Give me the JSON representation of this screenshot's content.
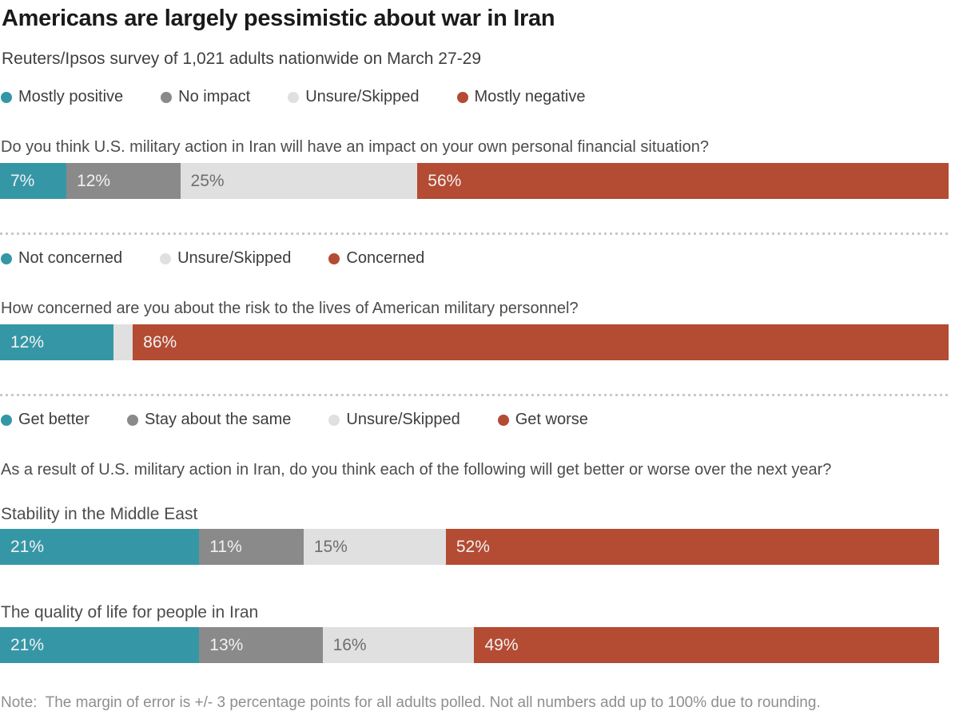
{
  "chart_data": {
    "type": "bar",
    "orientation": "horizontal-stacked",
    "title": "Americans are largely pessimistic about war in Iran",
    "subtitle": "Reuters/Ipsos survey of 1,021 adults nationwide on March 27-29",
    "note": "Note:  The margin of error is +/- 3 percentage points for all adults polled. Not all numbers add up to 100% due to rounding.",
    "colors": {
      "positive": "#3597a6",
      "neutral": "#8a8a8a",
      "unsure": "#e0e0e0",
      "negative": "#b44b33"
    },
    "xlim": [
      0,
      100
    ],
    "grid": false,
    "legend_position": "above-each-section",
    "sections": [
      {
        "legend": [
          {
            "label": "Mostly positive",
            "color": "#3597a6"
          },
          {
            "label": "No impact",
            "color": "#8a8a8a"
          },
          {
            "label": "Unsure/Skipped",
            "color": "#e0e0e0"
          },
          {
            "label": "Mostly negative",
            "color": "#b44b33"
          }
        ],
        "question": "Do you think U.S. military action in Iran will have an impact on your own personal financial situation?",
        "bars": [
          {
            "label": "",
            "segments": [
              {
                "name": "Mostly positive",
                "value": 7,
                "text": "7%",
                "color": "#3597a6",
                "text_color": "#f2f2f2"
              },
              {
                "name": "No impact",
                "value": 12,
                "text": "12%",
                "color": "#8a8a8a",
                "text_color": "#f2f2f2"
              },
              {
                "name": "Unsure/Skipped",
                "value": 25,
                "text": "25%",
                "color": "#e0e0e0",
                "text_color": "#6e6e6e"
              },
              {
                "name": "Mostly negative",
                "value": 56,
                "text": "56%",
                "color": "#b44b33",
                "text_color": "#f2f2f2"
              }
            ]
          }
        ]
      },
      {
        "legend": [
          {
            "label": "Not concerned",
            "color": "#3597a6"
          },
          {
            "label": "Unsure/Skipped",
            "color": "#e0e0e0"
          },
          {
            "label": "Concerned",
            "color": "#b44b33"
          }
        ],
        "question": "How concerned are you about the risk to the lives of American military personnel?",
        "bars": [
          {
            "label": "",
            "segments": [
              {
                "name": "Not concerned",
                "value": 12,
                "text": "12%",
                "color": "#3597a6",
                "text_color": "#f2f2f2"
              },
              {
                "name": "Unsure/Skipped",
                "value": 2,
                "text": "",
                "color": "#e0e0e0",
                "text_color": "#6e6e6e"
              },
              {
                "name": "Concerned",
                "value": 86,
                "text": "86%",
                "color": "#b44b33",
                "text_color": "#f2f2f2"
              }
            ]
          }
        ]
      },
      {
        "legend": [
          {
            "label": "Get better",
            "color": "#3597a6"
          },
          {
            "label": "Stay about the same",
            "color": "#8a8a8a"
          },
          {
            "label": "Unsure/Skipped",
            "color": "#e0e0e0"
          },
          {
            "label": "Get worse",
            "color": "#b44b33"
          }
        ],
        "question": "As a result of U.S. military action in Iran, do you think each of the following will get better or worse over the next year?",
        "bars": [
          {
            "label": "Stability in the Middle East",
            "segments": [
              {
                "name": "Get better",
                "value": 21,
                "text": "21%",
                "color": "#3597a6",
                "text_color": "#f2f2f2"
              },
              {
                "name": "Stay about the same",
                "value": 11,
                "text": "11%",
                "color": "#8a8a8a",
                "text_color": "#f2f2f2"
              },
              {
                "name": "Unsure/Skipped",
                "value": 15,
                "text": "15%",
                "color": "#e0e0e0",
                "text_color": "#6e6e6e"
              },
              {
                "name": "Get worse",
                "value": 52,
                "text": "52%",
                "color": "#b44b33",
                "text_color": "#f2f2f2"
              }
            ]
          },
          {
            "label": "The quality of life for people in Iran",
            "segments": [
              {
                "name": "Get better",
                "value": 21,
                "text": "21%",
                "color": "#3597a6",
                "text_color": "#f2f2f2"
              },
              {
                "name": "Stay about the same",
                "value": 13,
                "text": "13%",
                "color": "#8a8a8a",
                "text_color": "#f2f2f2"
              },
              {
                "name": "Unsure/Skipped",
                "value": 16,
                "text": "16%",
                "color": "#e0e0e0",
                "text_color": "#6e6e6e"
              },
              {
                "name": "Get worse",
                "value": 49,
                "text": "49%",
                "color": "#b44b33",
                "text_color": "#f2f2f2"
              }
            ]
          }
        ]
      }
    ]
  }
}
